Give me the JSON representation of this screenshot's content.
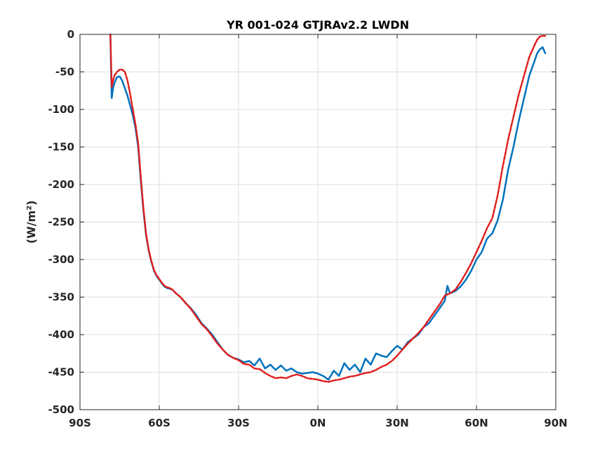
{
  "chart_data": {
    "type": "line",
    "title": "YR 001-024 GTJRAv2.2 LWDN",
    "xlabel": "",
    "ylabel": "(W/m²)",
    "xlim": [
      -90,
      90
    ],
    "ylim": [
      -500,
      0
    ],
    "grid": true,
    "x_ticks": [
      -90,
      -60,
      -30,
      0,
      30,
      60,
      90
    ],
    "x_tick_labels": [
      "90S",
      "60S",
      "30S",
      "0N",
      "30N",
      "60N",
      "90N"
    ],
    "y_ticks": [
      0,
      -50,
      -100,
      -150,
      -200,
      -250,
      -300,
      -350,
      -400,
      -450,
      -500
    ],
    "y_tick_labels": [
      "0",
      "-50",
      "-100",
      "-150",
      "-200",
      "-250",
      "-300",
      "-350",
      "-400",
      "-450",
      "-500"
    ],
    "series": [
      {
        "color": "#0072bd",
        "style": "solid",
        "x": [
          -78.5,
          -78.3,
          -78,
          -77.5,
          -77,
          -76,
          -75,
          -74,
          -73,
          -72,
          -71,
          -70,
          -69,
          -68,
          -67,
          -66,
          -65,
          -64,
          -63,
          -62,
          -61,
          -60,
          -59,
          -58,
          -57,
          -56,
          -55,
          -54,
          -52,
          -50,
          -48,
          -46,
          -44,
          -42,
          -40,
          -38,
          -36,
          -34,
          -32,
          -30,
          -28,
          -26,
          -24,
          -22,
          -20,
          -18,
          -16,
          -14,
          -12,
          -10,
          -8,
          -6,
          -4,
          -2,
          0,
          2,
          4,
          6,
          8,
          10,
          12,
          14,
          16,
          18,
          20,
          22,
          24,
          26,
          28,
          30,
          32,
          34,
          36,
          38,
          40,
          42,
          44,
          46,
          48,
          49,
          50,
          52,
          54,
          56,
          58,
          60,
          62,
          64,
          66,
          68,
          70,
          72,
          74,
          76,
          78,
          80,
          82,
          83,
          84,
          85,
          86
        ],
        "y": [
          0,
          -40,
          -85,
          -72,
          -65,
          -57,
          -56,
          -62,
          -72,
          -82,
          -95,
          -108,
          -125,
          -150,
          -195,
          -235,
          -268,
          -288,
          -303,
          -315,
          -322,
          -327,
          -332,
          -336,
          -338,
          -339,
          -340,
          -344,
          -350,
          -358,
          -365,
          -374,
          -385,
          -392,
          -400,
          -410,
          -420,
          -427,
          -431,
          -433,
          -437,
          -435,
          -441,
          -432,
          -445,
          -440,
          -447,
          -441,
          -448,
          -445,
          -450,
          -452,
          -451,
          -450,
          -452,
          -455,
          -460,
          -448,
          -455,
          -438,
          -447,
          -440,
          -450,
          -432,
          -440,
          -425,
          -428,
          -430,
          -422,
          -415,
          -420,
          -410,
          -405,
          -400,
          -390,
          -385,
          -375,
          -365,
          -355,
          -335,
          -345,
          -342,
          -336,
          -327,
          -315,
          -300,
          -290,
          -272,
          -265,
          -248,
          -220,
          -180,
          -150,
          -115,
          -85,
          -55,
          -35,
          -25,
          -20,
          -17,
          -25
        ]
      },
      {
        "color": "#e01f1f",
        "style": "dashed",
        "x": [
          -78.5,
          -78.2,
          -78,
          -77.5,
          -77,
          -76,
          -75,
          -74,
          -73,
          -72,
          -71,
          -70,
          -69,
          -68,
          -67,
          -66,
          -65,
          -64,
          -63,
          -62,
          -61,
          -60,
          -59,
          -58,
          -57,
          -56,
          -55,
          -54,
          -52,
          -50,
          -48,
          -46,
          -44,
          -42,
          -40,
          -38,
          -36,
          -34,
          -32,
          -30,
          -28,
          -26,
          -24,
          -22,
          -20,
          -18,
          -16,
          -14,
          -12,
          -10,
          -8,
          -6,
          -4,
          -2,
          0,
          2,
          4,
          6,
          8,
          10,
          12,
          14,
          16,
          18,
          20,
          22,
          24,
          26,
          28,
          30,
          32,
          34,
          36,
          38,
          40,
          42,
          44,
          46,
          48,
          50,
          52,
          54,
          56,
          58,
          60,
          62,
          64,
          66,
          68,
          70,
          72,
          74,
          76,
          78,
          80,
          82,
          83,
          84,
          85,
          86
        ],
        "y": [
          0,
          -40,
          -70,
          -62,
          -55,
          -50,
          -47,
          -47,
          -50,
          -62,
          -80,
          -100,
          -120,
          -145,
          -190,
          -232,
          -266,
          -287,
          -302,
          -314,
          -321,
          -326,
          -331,
          -335,
          -337,
          -338,
          -340,
          -344,
          -350,
          -358,
          -366,
          -376,
          -386,
          -393,
          -402,
          -412,
          -420,
          -427,
          -431,
          -434,
          -439,
          -440,
          -445,
          -446,
          -451,
          -455,
          -458,
          -457,
          -458,
          -455,
          -453,
          -455,
          -458,
          -459,
          -460,
          -462,
          -463,
          -461,
          -460,
          -458,
          -456,
          -455,
          -453,
          -451,
          -450,
          -447,
          -443,
          -440,
          -435,
          -428,
          -420,
          -412,
          -405,
          -398,
          -390,
          -380,
          -370,
          -360,
          -348,
          -345,
          -340,
          -330,
          -318,
          -305,
          -290,
          -275,
          -258,
          -245,
          -215,
          -175,
          -140,
          -110,
          -80,
          -55,
          -30,
          -14,
          -7,
          -3,
          -2,
          -2
        ]
      }
    ]
  }
}
